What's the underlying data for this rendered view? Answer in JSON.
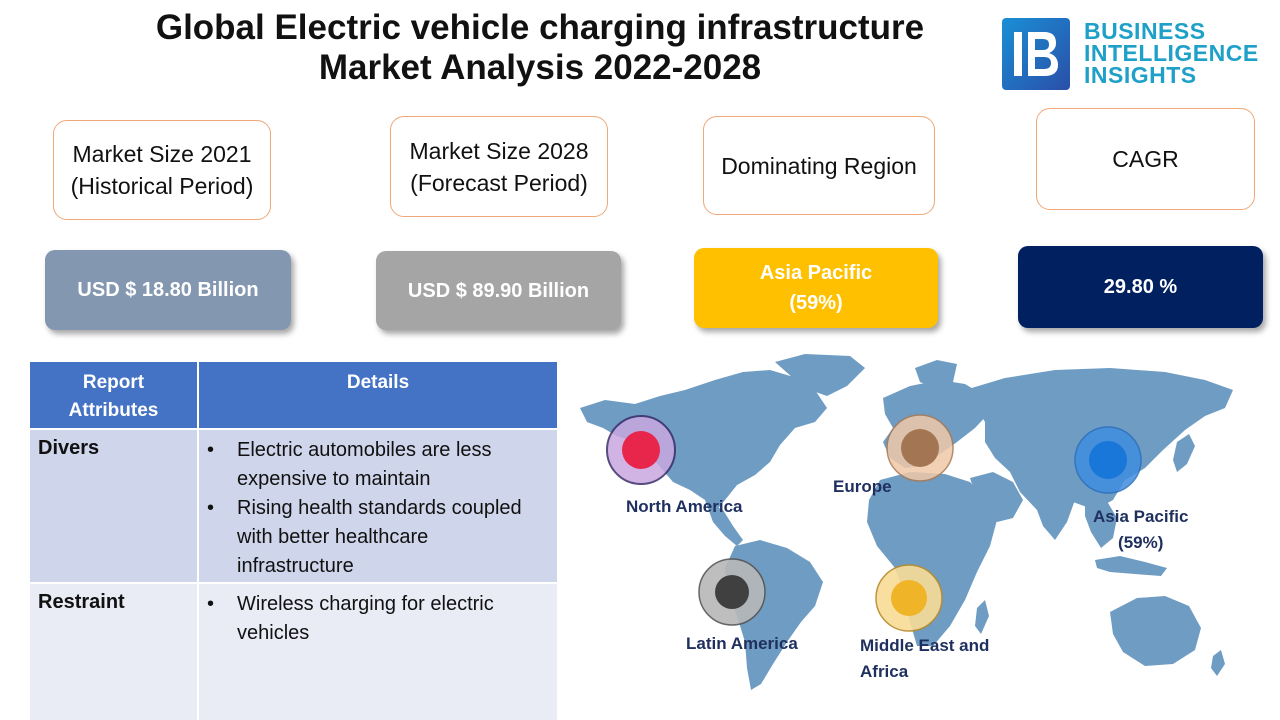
{
  "header": {
    "title_line1": "Global Electric vehicle charging infrastructure",
    "title_line2": "Market Analysis 2022-2028"
  },
  "logo": {
    "line1": "BUSINESS",
    "line2": "INTELLIGENCE",
    "line3": "INSIGHTS",
    "mark_icon": "bi-logo-icon"
  },
  "metrics": [
    {
      "label": "Market Size 2021\n(Historical Period)",
      "value": "USD $ 18.80 Billion",
      "color": "#8497b0"
    },
    {
      "label": "Market Size 2028\n(Forecast Period)",
      "value": "USD $ 89.90 Billion",
      "color": "#a5a5a5"
    },
    {
      "label": "Dominating Region",
      "value": "Asia Pacific\n(59%)",
      "color": "#ffc000"
    },
    {
      "label": "CAGR",
      "value": "29.80 %",
      "color": "#002060"
    }
  ],
  "table": {
    "headers": [
      "Report\nAttributes",
      "Details"
    ],
    "rows": [
      {
        "attribute": "Divers",
        "details": [
          "Electric automobiles are less expensive to maintain",
          "Rising health standards coupled with better healthcare infrastructure"
        ]
      },
      {
        "attribute": "Restraint",
        "details": [
          "Wireless charging for electric vehicles"
        ]
      }
    ]
  },
  "map": {
    "regions": [
      {
        "name": "North America",
        "color": "#e8254a"
      },
      {
        "name": "Europe",
        "color": "#a47552"
      },
      {
        "name": "Asia Pacific\n(59%)",
        "color": "#1877d8"
      },
      {
        "name": "Latin America",
        "color": "#404040"
      },
      {
        "name": "Middle East and\nAfrica",
        "color": "#f0b429"
      }
    ]
  },
  "colors": {
    "table_header": "#4472c4",
    "table_row": "#cfd5ea",
    "map_land": "#6f9cc3",
    "label_border": "#f0a878",
    "logo_text": "#1fa0c8"
  }
}
